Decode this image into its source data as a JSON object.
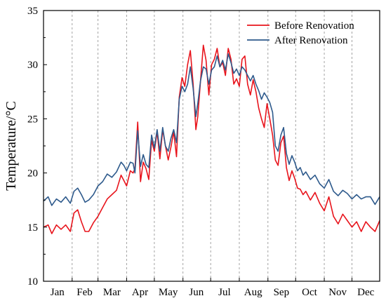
{
  "chart_data": {
    "type": "line",
    "title": "",
    "xlabel": "",
    "ylabel": "Temperature/°C",
    "ylim": [
      10,
      35
    ],
    "yticks": [
      10,
      15,
      20,
      25,
      30,
      35
    ],
    "x_unit": "day of year",
    "xlim": [
      1,
      365
    ],
    "categories": [
      "Jan",
      "Feb",
      "Mar",
      "Apr",
      "May",
      "Jun",
      "Jul",
      "Aug",
      "Sep",
      "Oct",
      "Nov",
      "Dec"
    ],
    "grid": "vertical dashed month separators",
    "legend_position": "top-right",
    "series": [
      {
        "name": "Before Renovation",
        "color": "#e8141c",
        "x": [
          1,
          6,
          10,
          15,
          20,
          25,
          30,
          34,
          38,
          42,
          46,
          50,
          55,
          60,
          65,
          70,
          75,
          80,
          85,
          88,
          91,
          95,
          98,
          100,
          103,
          106,
          109,
          112,
          115,
          118,
          121,
          124,
          127,
          130,
          133,
          136,
          139,
          142,
          145,
          148,
          151,
          154,
          157,
          160,
          163,
          166,
          168,
          171,
          174,
          177,
          180,
          183,
          186,
          189,
          192,
          195,
          198,
          201,
          204,
          207,
          210,
          213,
          216,
          219,
          222,
          225,
          228,
          231,
          234,
          237,
          240,
          243,
          246,
          249,
          252,
          255,
          258,
          261,
          264,
          267,
          270,
          273,
          276,
          279,
          282,
          285,
          290,
          295,
          300,
          305,
          310,
          315,
          320,
          325,
          330,
          335,
          340,
          345,
          350,
          355,
          360,
          365
        ],
        "values": [
          15.0,
          15.2,
          14.4,
          15.2,
          14.8,
          15.2,
          14.6,
          16.3,
          16.6,
          15.5,
          14.6,
          14.6,
          15.4,
          16.0,
          16.8,
          17.6,
          18.0,
          18.4,
          19.8,
          19.3,
          18.8,
          20.2,
          20.0,
          20.4,
          24.7,
          19.2,
          21.0,
          20.4,
          19.4,
          23.0,
          22.0,
          23.8,
          21.3,
          24.0,
          22.5,
          21.2,
          22.4,
          23.8,
          21.5,
          27.0,
          28.8,
          28.0,
          30.0,
          31.3,
          28.2,
          24.0,
          25.2,
          28.5,
          31.8,
          30.4,
          27.2,
          30.0,
          30.5,
          31.5,
          29.8,
          30.2,
          29.0,
          31.5,
          30.5,
          28.2,
          28.7,
          28.0,
          30.5,
          30.8,
          28.2,
          27.2,
          28.6,
          27.5,
          26.0,
          25.0,
          24.2,
          26.4,
          25.0,
          23.5,
          21.2,
          20.7,
          22.8,
          23.4,
          20.5,
          19.3,
          20.2,
          19.5,
          18.6,
          18.5,
          18.0,
          18.3,
          17.5,
          18.2,
          17.2,
          16.5,
          17.8,
          16.0,
          15.3,
          16.2,
          15.6,
          15.0,
          15.5,
          14.6,
          15.5,
          15.0,
          14.6,
          15.6
        ]
      },
      {
        "name": "After Renovation",
        "color": "#2e5a8c",
        "x": [
          1,
          6,
          10,
          15,
          20,
          25,
          30,
          34,
          38,
          42,
          46,
          50,
          55,
          60,
          65,
          70,
          75,
          80,
          85,
          88,
          91,
          95,
          98,
          100,
          103,
          106,
          109,
          112,
          115,
          118,
          121,
          124,
          127,
          130,
          133,
          136,
          139,
          142,
          145,
          148,
          151,
          154,
          157,
          160,
          163,
          166,
          168,
          171,
          174,
          177,
          180,
          183,
          186,
          189,
          192,
          195,
          198,
          201,
          204,
          207,
          210,
          213,
          216,
          219,
          222,
          225,
          228,
          231,
          234,
          237,
          240,
          243,
          246,
          249,
          252,
          255,
          258,
          261,
          264,
          267,
          270,
          273,
          276,
          279,
          282,
          285,
          290,
          295,
          300,
          305,
          310,
          315,
          320,
          325,
          330,
          335,
          340,
          345,
          350,
          355,
          360,
          365
        ],
        "values": [
          17.4,
          17.8,
          17.0,
          17.6,
          17.3,
          17.8,
          17.2,
          18.3,
          18.6,
          18.0,
          17.3,
          17.5,
          18.0,
          18.8,
          19.2,
          19.9,
          19.6,
          20.1,
          21.0,
          20.7,
          20.2,
          21.0,
          20.9,
          20.0,
          23.9,
          20.6,
          21.7,
          20.8,
          20.5,
          23.5,
          22.3,
          24.0,
          22.0,
          24.2,
          22.5,
          22.0,
          23.2,
          24.0,
          22.8,
          26.8,
          28.0,
          27.5,
          28.2,
          29.8,
          27.8,
          25.2,
          26.4,
          28.5,
          29.8,
          29.6,
          28.2,
          29.5,
          29.8,
          30.8,
          29.8,
          30.4,
          29.5,
          31.0,
          30.2,
          29.2,
          29.6,
          29.0,
          29.8,
          29.5,
          29.0,
          28.5,
          29.0,
          28.2,
          27.6,
          26.8,
          27.4,
          27.0,
          26.5,
          25.6,
          22.5,
          22.0,
          23.5,
          24.2,
          21.8,
          20.8,
          21.6,
          21.0,
          20.2,
          20.5,
          19.8,
          20.1,
          19.4,
          19.8,
          19.0,
          18.6,
          19.4,
          18.3,
          17.9,
          18.4,
          18.1,
          17.6,
          18.0,
          17.6,
          17.8,
          17.8,
          17.1,
          17.8
        ]
      }
    ]
  }
}
